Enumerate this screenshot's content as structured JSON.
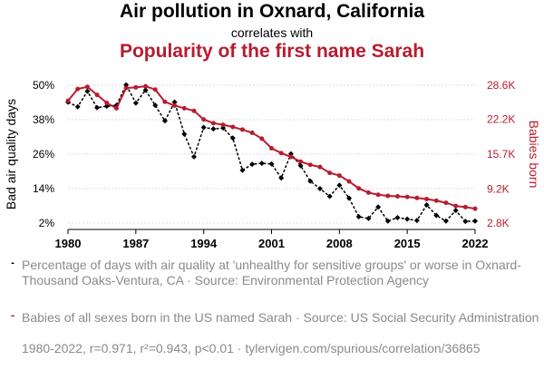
{
  "header": {
    "title": "Air pollution in Oxnard, California",
    "connector": "correlates with",
    "subtitle": "Popularity of the first name Sarah"
  },
  "legend": {
    "series1": "Percentage of days with air quality at 'unhealthy for sensitive groups' or worse in Oxnard-Thousand Oaks-Ventura, CA · Source: Environmental Protection Agency",
    "series2": "Babies of all sexes born in the US named Sarah · Source: US Social Security Administration"
  },
  "footer": "1980-2022, r=0.971, r²=0.943, p<0.01 · tylervigen.com/spurious/correlation/36865",
  "colors": {
    "series1": "#000000",
    "series2": "#b81c2e",
    "axis_text": "#000000",
    "muted": "#8a8a8a"
  },
  "chart_data": {
    "type": "line",
    "x": [
      1980,
      1981,
      1982,
      1983,
      1984,
      1985,
      1986,
      1987,
      1988,
      1989,
      1990,
      1991,
      1992,
      1993,
      1994,
      1995,
      1996,
      1997,
      1998,
      1999,
      2000,
      2001,
      2002,
      2003,
      2004,
      2005,
      2006,
      2007,
      2008,
      2009,
      2010,
      2011,
      2012,
      2013,
      2014,
      2015,
      2016,
      2017,
      2018,
      2019,
      2020,
      2021,
      2022
    ],
    "xticks": [
      1980,
      1987,
      1994,
      2001,
      2008,
      2015,
      2022
    ],
    "xlim": [
      1980,
      2022
    ],
    "y_left": {
      "label": "Bad air quality days",
      "ticks": [
        2,
        14,
        26,
        38,
        50
      ],
      "tick_labels": [
        "2%",
        "14%",
        "26%",
        "38%",
        "50%"
      ],
      "lim": [
        2,
        50
      ]
    },
    "y_right": {
      "label": "Babies born",
      "ticks": [
        2800,
        9200,
        15700,
        22200,
        28600
      ],
      "tick_labels": [
        "2.8K",
        "9.2K",
        "15.7K",
        "22.2K",
        "28.6K"
      ],
      "lim": [
        2800,
        28600
      ]
    },
    "series": [
      {
        "name": "Percentage of days with air quality at 'unhealthy for sensitive groups' or worse in Oxnard-Thousand Oaks-Ventura, CA",
        "axis": "left",
        "style": "dashed",
        "marker": "diamond",
        "values": [
          44.1,
          42.5,
          47.9,
          42.2,
          42.7,
          43.0,
          50.1,
          43.8,
          48.3,
          43.0,
          37.6,
          44.1,
          33.0,
          25.1,
          35.3,
          34.8,
          35.1,
          31.6,
          20.4,
          22.5,
          22.8,
          22.6,
          17.7,
          26.1,
          22.0,
          16.6,
          14.0,
          11.3,
          15.2,
          10.7,
          4.2,
          3.6,
          7.6,
          2.7,
          3.9,
          3.4,
          2.9,
          8.3,
          4.7,
          2.7,
          6.4,
          2.6,
          2.7
        ]
      },
      {
        "name": "Babies of all sexes born in the US named Sarah",
        "axis": "right",
        "style": "solid",
        "marker": "circle",
        "values": [
          25700,
          27900,
          28300,
          26800,
          25300,
          24300,
          28100,
          28200,
          28400,
          27800,
          25500,
          24800,
          24300,
          23800,
          22200,
          21500,
          21200,
          20800,
          20300,
          19700,
          18600,
          16800,
          15900,
          15200,
          14300,
          13700,
          13300,
          12200,
          11700,
          10600,
          9300,
          8500,
          8100,
          7900,
          7800,
          7700,
          7500,
          7300,
          7000,
          6600,
          6000,
          5800,
          5500
        ]
      }
    ]
  }
}
